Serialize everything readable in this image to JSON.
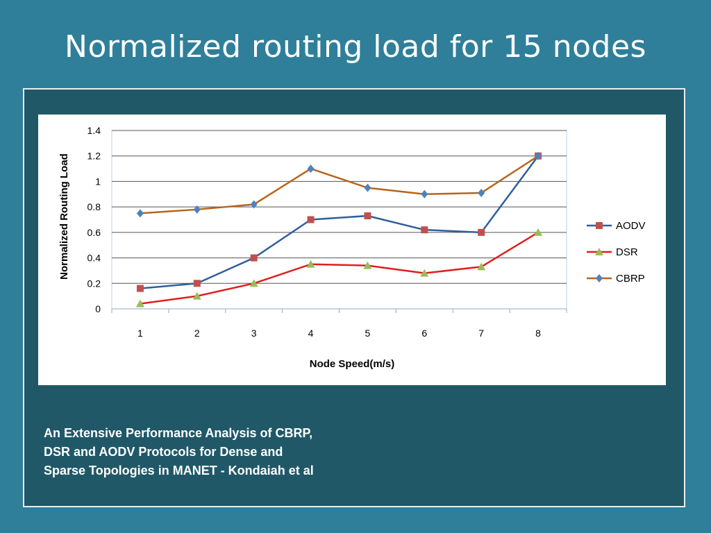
{
  "slide": {
    "title": "Normalized routing load for 15 nodes",
    "caption_lines": [
      "An Extensive Performance Analysis of CBRP,",
      "DSR and AODV Protocols for Dense and",
      "Sparse Topologies in MANET  - Kondaiah et al"
    ]
  },
  "chart_data": {
    "type": "line",
    "title": "",
    "xlabel": "Node Speed(m/s)",
    "ylabel": "Normalized Routing Load",
    "categories": [
      "1",
      "2",
      "3",
      "4",
      "5",
      "6",
      "7",
      "8"
    ],
    "ylim": [
      0,
      1.4
    ],
    "yticks": [
      "0",
      "0.2",
      "0.4",
      "0.6",
      "0.8",
      "1",
      "1.2",
      "1.4"
    ],
    "grid": true,
    "legend_position": "right",
    "series": [
      {
        "name": "AODV",
        "values": [
          0.16,
          0.2,
          0.4,
          0.7,
          0.73,
          0.62,
          0.6,
          1.2
        ],
        "color": "#2e5f9a",
        "marker": "square",
        "marker_color": "#c0504d"
      },
      {
        "name": "DSR",
        "values": [
          0.04,
          0.1,
          0.2,
          0.35,
          0.34,
          0.28,
          0.33,
          0.6
        ],
        "color": "#e01e1e",
        "marker": "triangle",
        "marker_color": "#9bbb59"
      },
      {
        "name": "CBRP",
        "values": [
          0.75,
          0.78,
          0.82,
          1.1,
          0.95,
          0.9,
          0.91,
          1.2
        ],
        "color": "#b5651d",
        "marker": "diamond",
        "marker_color": "#4f81bd"
      }
    ]
  }
}
